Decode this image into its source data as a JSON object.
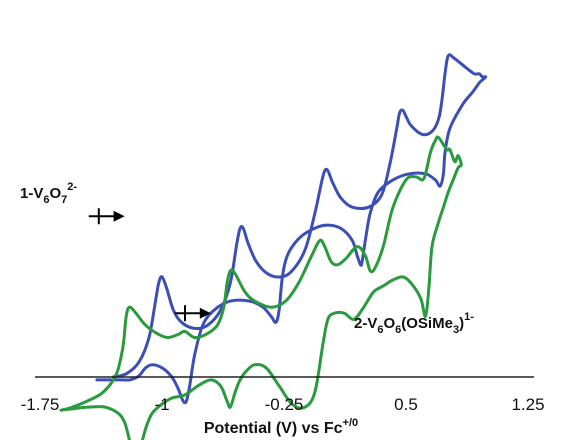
{
  "chart_data": {
    "type": "line",
    "xlabel": "Potential (V) vs Fc",
    "xlabel_sup": "+/0",
    "xlim": [
      -1.75,
      1.25
    ],
    "x_ticks": [
      "-1.75",
      "-1",
      "-0.25",
      "0.5",
      "1.25"
    ],
    "y_axis_shown": false,
    "grid": false,
    "series": [
      {
        "name": "1-V6O7 2-",
        "label_parts": [
          "1-V",
          "6",
          "O",
          "7",
          "2-"
        ],
        "color": "#3b4fb5",
        "x": [
          -1.3,
          -1.22,
          -1.14,
          -1.08,
          -1.04,
          -1.02,
          -1.0,
          -0.97,
          -0.93,
          -0.88,
          -0.8,
          -0.72,
          -0.64,
          -0.58,
          -0.54,
          -0.52,
          -0.5,
          -0.47,
          -0.42,
          -0.35,
          -0.27,
          -0.2,
          -0.12,
          -0.06,
          -0.02,
          0.0,
          0.02,
          0.05,
          0.1,
          0.17,
          0.27,
          0.35,
          0.4,
          0.44,
          0.46,
          0.48,
          0.5,
          0.53,
          0.6,
          0.66,
          0.7,
          0.72,
          0.74,
          0.76,
          0.8,
          0.87,
          0.92,
          0.95,
          0.97,
          0.99,
          0.97,
          0.95,
          0.91,
          0.85,
          0.77,
          0.74,
          0.73,
          0.71,
          0.68,
          0.62,
          0.52,
          0.42,
          0.33,
          0.28,
          0.25,
          0.23,
          0.22,
          0.2,
          0.17,
          0.1,
          0.0,
          -0.1,
          -0.17,
          -0.23,
          -0.26,
          -0.28,
          -0.3,
          -0.33,
          -0.38,
          -0.46,
          -0.58,
          -0.68,
          -0.75,
          -0.8,
          -0.83,
          -0.85,
          -0.87,
          -0.9,
          -0.94,
          -1.0,
          -1.06,
          -1.1,
          -1.13,
          -1.15,
          -1.17,
          -1.2,
          -1.25,
          -1.3,
          -1.4
        ],
        "y": [
          0.5,
          0.6,
          1.0,
          1.8,
          3.0,
          3.6,
          3.8,
          3.4,
          2.7,
          2.3,
          2.1,
          2.2,
          2.7,
          3.6,
          4.9,
          5.4,
          5.4,
          4.9,
          4.3,
          3.9,
          3.8,
          4.0,
          4.7,
          5.9,
          6.9,
          7.3,
          7.3,
          6.9,
          6.4,
          6.1,
          6.1,
          6.5,
          7.5,
          8.6,
          9.2,
          9.3,
          9.1,
          8.8,
          8.5,
          8.6,
          9.0,
          9.6,
          10.5,
          11.1,
          11.0,
          10.7,
          10.5,
          10.5,
          10.4,
          10.4,
          10.3,
          10.2,
          9.9,
          9.5,
          8.7,
          7.9,
          7.2,
          6.8,
          7.0,
          7.2,
          7.2,
          7.0,
          6.6,
          5.9,
          5.0,
          4.3,
          4.2,
          4.5,
          5.0,
          5.4,
          5.5,
          5.3,
          5.0,
          4.5,
          3.8,
          2.7,
          2.3,
          2.5,
          2.8,
          3.0,
          3.0,
          2.7,
          2.2,
          1.2,
          0.2,
          -0.3,
          -0.3,
          0.1,
          0.5,
          0.8,
          0.9,
          0.8,
          0.6,
          0.5,
          0.45,
          0.4,
          0.4,
          0.4,
          0.4
        ]
      },
      {
        "name": "2-V6O6(OSiMe3) 1-",
        "label_parts": [
          "2-V",
          "6",
          "O",
          "6",
          "(OSiMe",
          "3",
          ")",
          "1-"
        ],
        "color": "#2a9a3e",
        "x": [
          -1.62,
          -1.55,
          -1.46,
          -1.36,
          -1.28,
          -1.24,
          -1.22,
          -1.2,
          -1.16,
          -1.1,
          -1.02,
          -0.96,
          -0.9,
          -0.86,
          -0.8,
          -0.73,
          -0.66,
          -0.62,
          -0.6,
          -0.58,
          -0.55,
          -0.49,
          -0.43,
          -0.33,
          -0.24,
          -0.16,
          -0.08,
          -0.03,
          0.0,
          0.04,
          0.08,
          0.13,
          0.2,
          0.25,
          0.28,
          0.31,
          0.36,
          0.42,
          0.5,
          0.56,
          0.6,
          0.62,
          0.65,
          0.68,
          0.7,
          0.75,
          0.77,
          0.8,
          0.82,
          0.84,
          0.82,
          0.79,
          0.76,
          0.73,
          0.7,
          0.66,
          0.64,
          0.62,
          0.59,
          0.53,
          0.48,
          0.42,
          0.36,
          0.3,
          0.24,
          0.18,
          0.12,
          0.06,
          0.02,
          -0.01,
          -0.06,
          -0.12,
          -0.2,
          -0.28,
          -0.36,
          -0.43,
          -0.48,
          -0.52,
          -0.55,
          -0.58,
          -0.6,
          -0.64,
          -0.7,
          -0.78,
          -0.86,
          -0.94,
          -1.0,
          -1.06,
          -1.1,
          -1.14,
          -1.16,
          -1.18,
          -1.2,
          -1.23,
          -1.27,
          -1.35,
          -1.45,
          -1.55,
          -1.62
        ],
        "y": [
          -0.6,
          -0.5,
          -0.3,
          0.0,
          0.6,
          1.5,
          2.5,
          2.8,
          2.6,
          2.2,
          1.9,
          1.8,
          1.9,
          2.0,
          1.8,
          1.9,
          2.2,
          2.8,
          3.6,
          4.0,
          3.9,
          3.3,
          3.0,
          2.8,
          3.0,
          3.6,
          4.5,
          5.0,
          4.8,
          4.3,
          4.2,
          4.4,
          4.8,
          4.5,
          4.0,
          4.1,
          4.8,
          6.1,
          7.0,
          7.1,
          7.0,
          7.2,
          7.9,
          8.3,
          8.4,
          8.0,
          8.0,
          7.6,
          7.8,
          7.5,
          7.4,
          7.0,
          6.6,
          6.1,
          5.6,
          4.8,
          3.4,
          2.5,
          3.1,
          3.6,
          3.8,
          3.7,
          3.5,
          3.3,
          2.8,
          2.4,
          2.6,
          2.6,
          2.4,
          1.6,
          0.0,
          -0.5,
          -0.4,
          0.2,
          0.8,
          0.9,
          0.7,
          0.4,
          0.0,
          -0.5,
          -0.3,
          0.2,
          0.4,
          0.2,
          -0.1,
          -0.2,
          -0.4,
          -0.7,
          -1.2,
          -2.0,
          -2.3,
          -2.1,
          -1.6,
          -1.0,
          -0.7,
          -0.5,
          -0.5,
          -0.55,
          -0.6
        ]
      }
    ],
    "arrows": [
      {
        "name": "scan-direction-arrow-blue",
        "x_start": -1.45,
        "x_end": -1.23,
        "y": 5.8,
        "color": "#000000"
      },
      {
        "name": "scan-direction-arrow-green",
        "x_start": -0.92,
        "x_end": -0.7,
        "y": 2.6,
        "color": "#000000"
      }
    ]
  }
}
